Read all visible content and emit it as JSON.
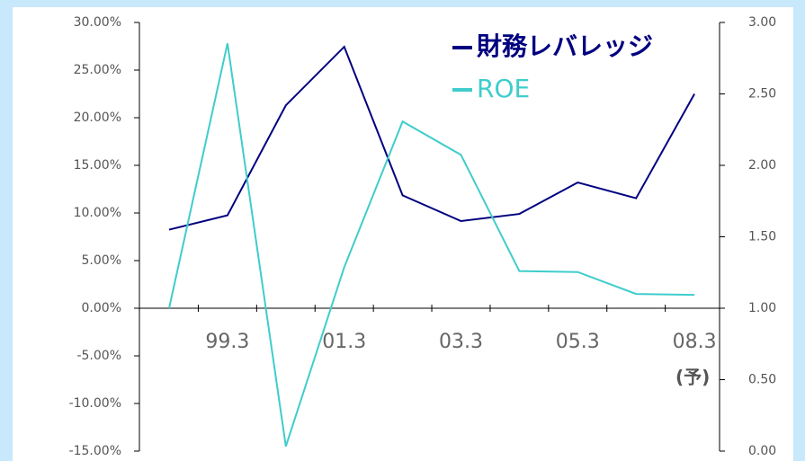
{
  "chart_data": {
    "type": "line",
    "categories": [
      null,
      "99.3",
      null,
      "01.3",
      null,
      "03.3",
      null,
      "05.3",
      null,
      "08.3"
    ],
    "annotations": [
      "(予)"
    ],
    "series": [
      {
        "name": "財務レバレッジ",
        "color": "#000080",
        "axis": "y2",
        "values": [
          1.55,
          1.65,
          2.42,
          2.83,
          1.79,
          1.61,
          1.66,
          1.88,
          1.77,
          2.5
        ]
      },
      {
        "name": "ROE",
        "color": "#40cccc",
        "values": [
          0,
          27.8,
          -14.5,
          4.3,
          19.6,
          16.1,
          3.9,
          3.8,
          1.5,
          1.4
        ]
      }
    ],
    "ylim": [
      -15,
      30
    ],
    "yticks": [
      {
        "value": 30,
        "label": "30.00%"
      },
      {
        "value": 25,
        "label": "25.00%"
      },
      {
        "value": 20,
        "label": "20.00%"
      },
      {
        "value": 15,
        "label": "15.00%"
      },
      {
        "value": 10,
        "label": "10.00%"
      },
      {
        "value": 5,
        "label": "5.00%"
      },
      {
        "value": 0,
        "label": "0.00%"
      },
      {
        "value": -5,
        "label": "-5.00%"
      },
      {
        "value": -10,
        "label": "-10.00%"
      },
      {
        "value": -15,
        "label": "-15.00%"
      }
    ],
    "y2lim": [
      0,
      3
    ],
    "y2ticks": [
      {
        "value": 3,
        "label": "3.00"
      },
      {
        "value": 2.5,
        "label": "2.50"
      },
      {
        "value": 2,
        "label": "2.00"
      },
      {
        "value": 1.5,
        "label": "1.50"
      },
      {
        "value": 1,
        "label": "1.00"
      },
      {
        "value": 0.5,
        "label": "0.50"
      },
      {
        "value": 0,
        "label": "0.00"
      }
    ]
  }
}
